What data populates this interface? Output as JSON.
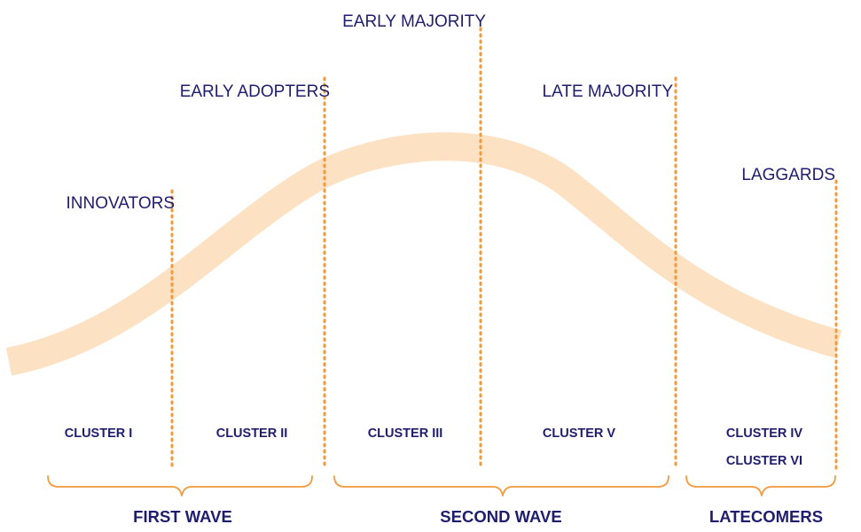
{
  "colors": {
    "curve": "#fce1c3",
    "divider": "#f39a3d",
    "bracket": "#f39a3d",
    "text": "#1f1d6e"
  },
  "segments": {
    "innovators": "INNOVATORS",
    "early_adopters": "EARLY ADOPTERS",
    "early_majority": "EARLY MAJORITY",
    "late_majority": "LATE MAJORITY",
    "laggards": "LAGGARDS"
  },
  "clusters": {
    "cluster_1": "CLUSTER I",
    "cluster_2": "CLUSTER II",
    "cluster_3": "CLUSTER III",
    "cluster_5": "CLUSTER V",
    "cluster_4": "CLUSTER IV",
    "cluster_6": "CLUSTER VI"
  },
  "waves": {
    "first": "FIRST WAVE",
    "second": "SECOND WAVE",
    "latecomers": "LATECOMERS"
  }
}
